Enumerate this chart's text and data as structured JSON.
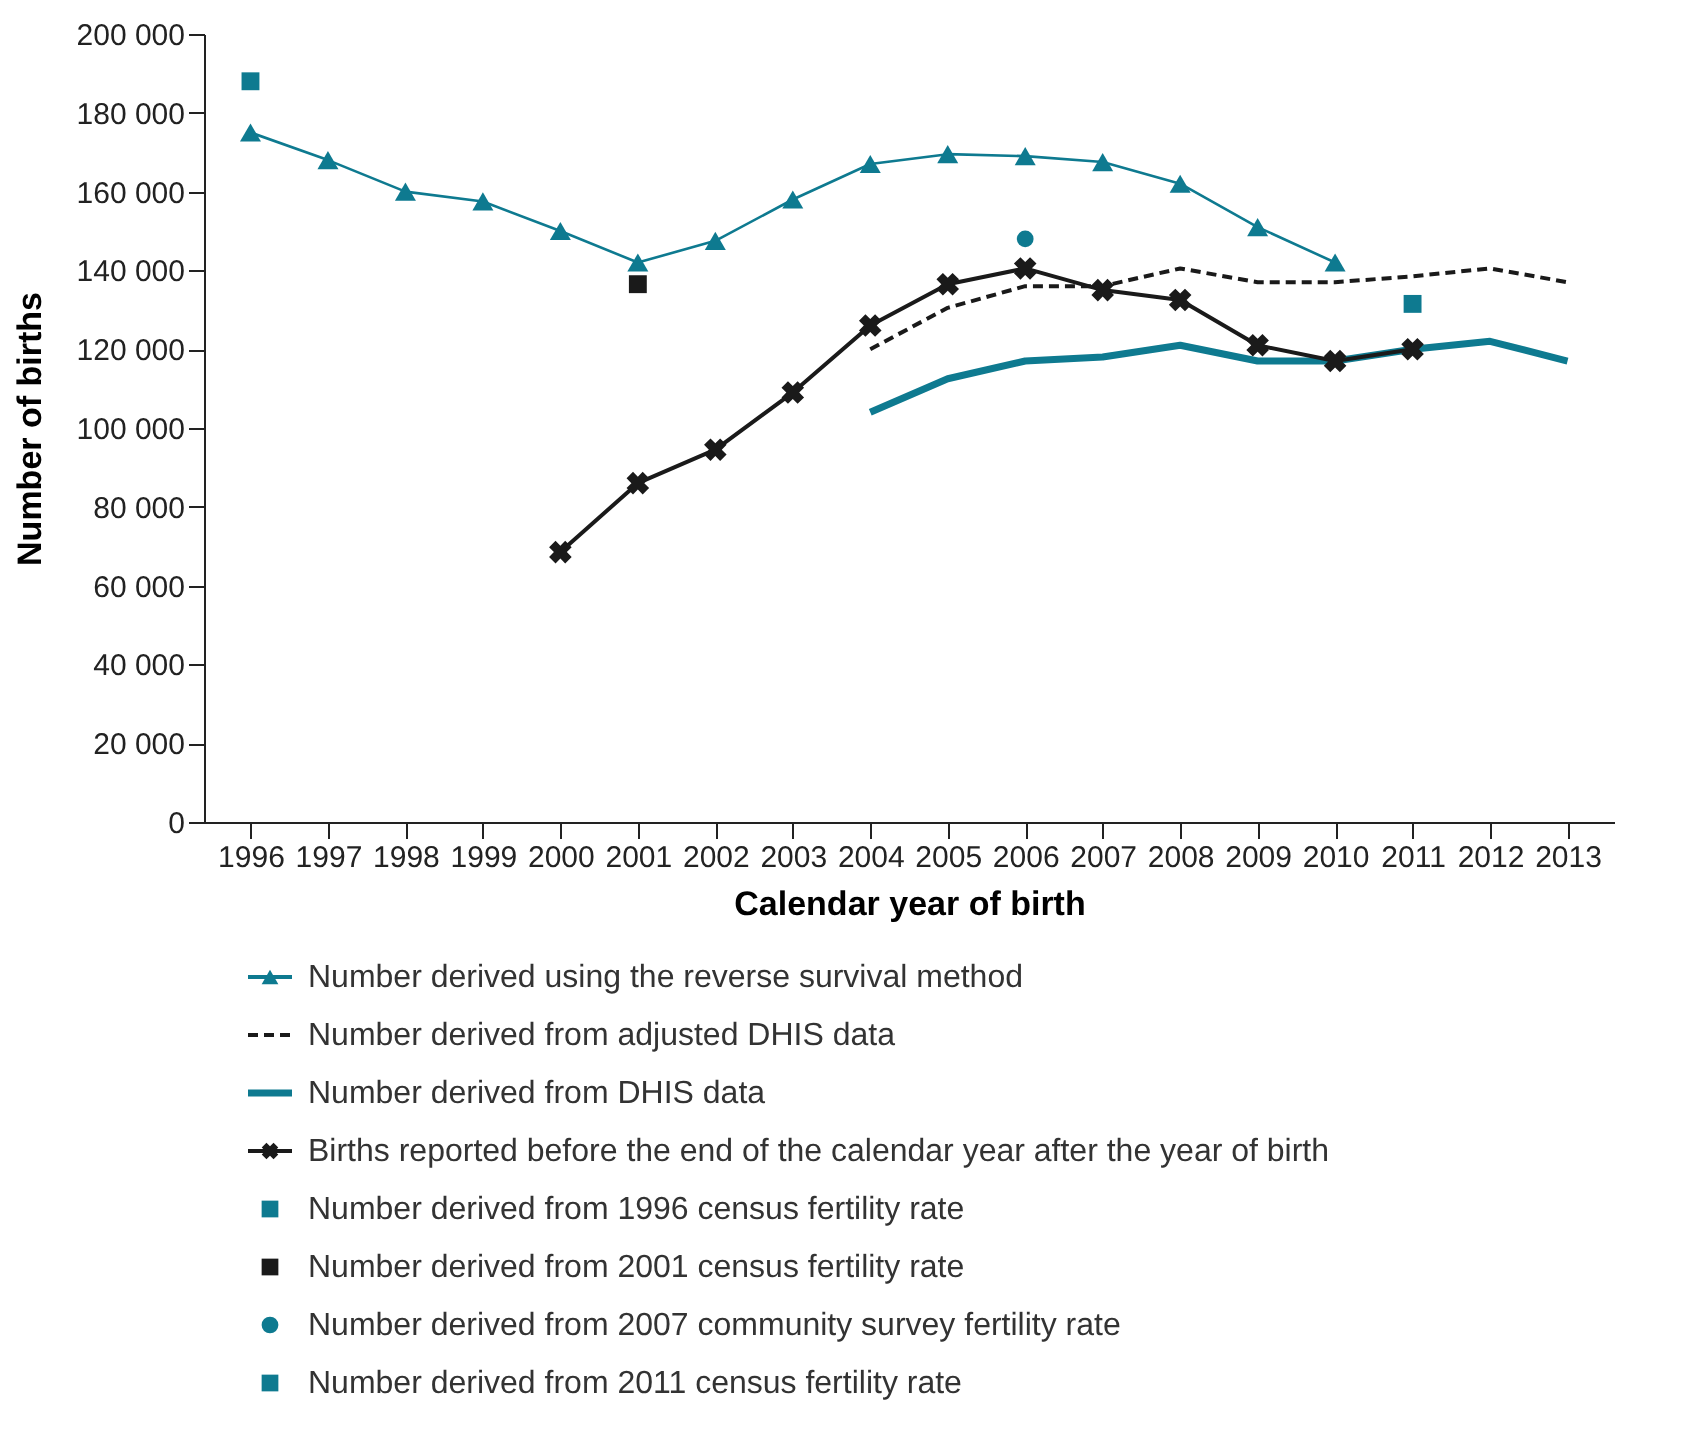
{
  "chart_data": {
    "type": "line",
    "xlabel": "Calendar year of birth",
    "ylabel": "Number of births",
    "categories": [
      "1996",
      "1997",
      "1998",
      "1999",
      "2000",
      "2001",
      "2002",
      "2003",
      "2004",
      "2005",
      "2006",
      "2007",
      "2008",
      "2009",
      "2010",
      "2011",
      "2012",
      "2013"
    ],
    "ylim": [
      0,
      200000
    ],
    "yticks": [
      0,
      {
        "value": 20000,
        "label": "20 000"
      },
      {
        "value": 40000,
        "label": "40 000"
      },
      {
        "value": 60000,
        "label": "60 000"
      },
      {
        "value": 80000,
        "label": "80 000"
      },
      {
        "value": 100000,
        "label": "100 000"
      },
      {
        "value": 120000,
        "label": "120 000"
      },
      {
        "value": 140000,
        "label": "140 000"
      },
      {
        "value": 160000,
        "label": "160 000"
      },
      {
        "value": 180000,
        "label": "180 000"
      },
      {
        "value": 200000,
        "label": "200 000"
      }
    ],
    "grid": false,
    "legend": "bottom",
    "series": [
      {
        "name": "Number derived using the reverse survival method",
        "color": "#0e7a90",
        "marker": "triangle",
        "line_style": "solid",
        "values": [
          175000,
          168000,
          160000,
          157500,
          150000,
          142000,
          147500,
          158000,
          167000,
          169500,
          169000,
          167500,
          162000,
          151000,
          142000,
          null,
          null,
          null
        ]
      },
      {
        "name": "Number derived from adjusted DHIS data",
        "color": "#1a1a1a",
        "marker": "none",
        "line_style": "dashed",
        "values": [
          null,
          null,
          null,
          null,
          null,
          null,
          null,
          null,
          120000,
          130500,
          136000,
          136000,
          140500,
          137000,
          137000,
          138500,
          140500,
          137000
        ]
      },
      {
        "name": "Number derived from DHIS data",
        "color": "#0e7a90",
        "marker": "none",
        "line_style": "solid",
        "values": [
          null,
          null,
          null,
          null,
          null,
          null,
          null,
          null,
          104000,
          112500,
          117000,
          118000,
          121000,
          117000,
          117000,
          120000,
          122000,
          117000
        ]
      },
      {
        "name": "Births reported before the end of the calendar year after the year of birth",
        "color": "#1a1a1a",
        "marker": "cross",
        "line_style": "solid",
        "values": [
          null,
          null,
          null,
          null,
          68500,
          86000,
          94500,
          109000,
          126000,
          136500,
          140500,
          135000,
          132500,
          121000,
          117000,
          120000,
          null,
          null
        ]
      },
      {
        "name": "Number derived from 1996 census fertility rate",
        "type": "scatter",
        "color": "#0e7a90",
        "marker": "square",
        "values": [
          188000,
          null,
          null,
          null,
          null,
          null,
          null,
          null,
          null,
          null,
          null,
          null,
          null,
          null,
          null,
          null,
          null,
          null
        ]
      },
      {
        "name": "Number derived from 2001 census fertility rate",
        "type": "scatter",
        "color": "#1a1a1a",
        "marker": "square",
        "values": [
          null,
          null,
          null,
          null,
          null,
          136500,
          null,
          null,
          null,
          null,
          null,
          null,
          null,
          null,
          null,
          null,
          null,
          null
        ]
      },
      {
        "name": "Number derived from 2007 community survey fertility rate",
        "type": "scatter",
        "color": "#0e7a90",
        "marker": "circle",
        "values": [
          null,
          null,
          null,
          null,
          null,
          null,
          null,
          null,
          null,
          null,
          148000,
          null,
          null,
          null,
          null,
          null,
          null,
          null
        ]
      },
      {
        "name": "Number derived from 2011 census fertility rate",
        "type": "scatter",
        "color": "#0e7a90",
        "marker": "square",
        "values": [
          null,
          null,
          null,
          null,
          null,
          null,
          null,
          null,
          null,
          null,
          null,
          null,
          null,
          null,
          null,
          131500,
          null,
          null
        ]
      }
    ]
  }
}
